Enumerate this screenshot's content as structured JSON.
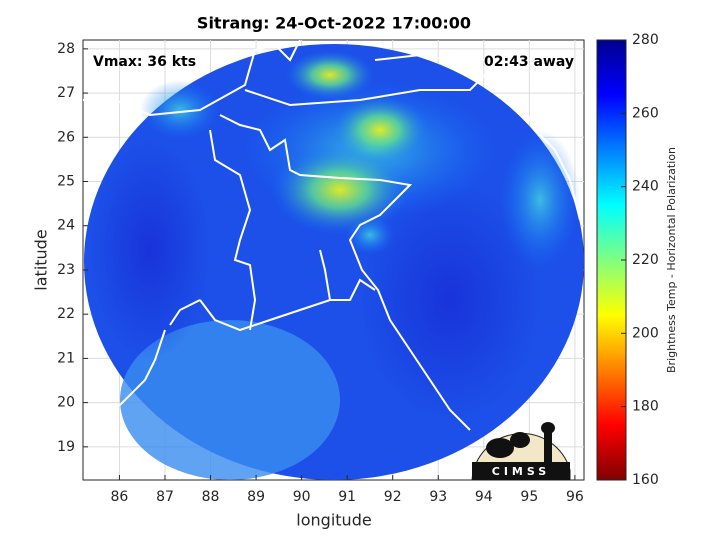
{
  "chart_data": {
    "type": "image",
    "title": "Sitrang: 24-Oct-2022 17:00:00",
    "annotations": [
      "Vmax: 36 kts",
      "02:43 away"
    ],
    "x_label": "longitude",
    "y_label": "latitude",
    "xlim": [
      85.2,
      96.2
    ],
    "xticks": [
      86,
      87,
      88,
      89,
      90,
      91,
      92,
      93,
      94,
      95,
      96
    ],
    "ylim": [
      18.25,
      28.2
    ],
    "yticks": [
      19,
      20,
      21,
      22,
      23,
      24,
      25,
      26,
      27,
      28
    ],
    "grid": true,
    "colorbar": {
      "label": "Brightness Temp - Horizontal Polarization",
      "lim": [
        160,
        280
      ],
      "ticks": [
        160,
        180,
        200,
        220,
        240,
        260,
        280
      ],
      "colormap": [
        "#800000",
        "#ff0000",
        "#ff8000",
        "#ffff00",
        "#80ff80",
        "#00ffff",
        "#0080ff",
        "#0000ff",
        "#00008f"
      ]
    },
    "logo": "CIMSS"
  }
}
